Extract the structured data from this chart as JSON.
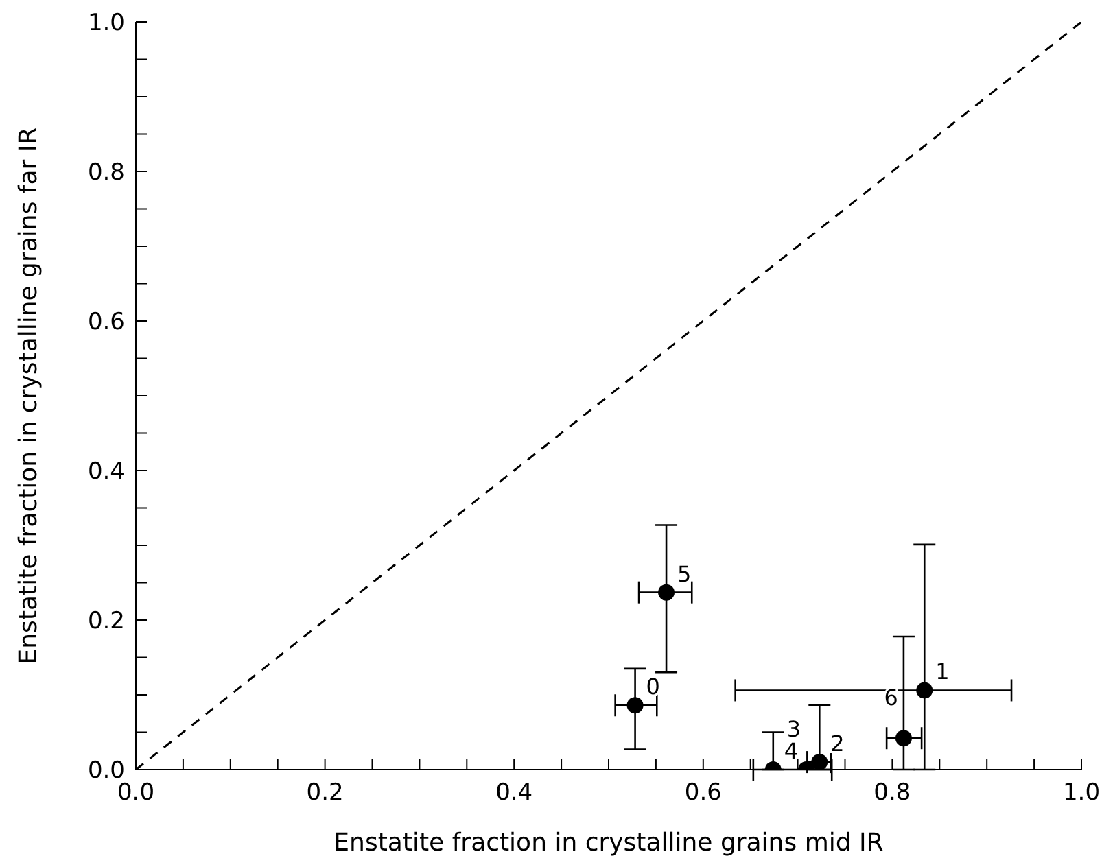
{
  "chart_data": {
    "type": "scatter",
    "xlabel": "Enstatite fraction in crystalline grains mid IR",
    "ylabel": "Enstatite fraction  in crystalline grains far IR",
    "xlim": [
      0,
      1
    ],
    "ylim": [
      0,
      1
    ],
    "xticks": [
      {
        "value": 0,
        "label": "0.0"
      },
      {
        "value": 0.05,
        "label": null
      },
      {
        "value": 0.1,
        "label": null
      },
      {
        "value": 0.15,
        "label": null
      },
      {
        "value": 0.2,
        "label": "0.2"
      },
      {
        "value": 0.25,
        "label": null
      },
      {
        "value": 0.3,
        "label": null
      },
      {
        "value": 0.35,
        "label": null
      },
      {
        "value": 0.4,
        "label": "0.4"
      },
      {
        "value": 0.45,
        "label": null
      },
      {
        "value": 0.5,
        "label": null
      },
      {
        "value": 0.55,
        "label": null
      },
      {
        "value": 0.6,
        "label": "0.6"
      },
      {
        "value": 0.65,
        "label": null
      },
      {
        "value": 0.7,
        "label": null
      },
      {
        "value": 0.75,
        "label": null
      },
      {
        "value": 0.8,
        "label": "0.8"
      },
      {
        "value": 0.85,
        "label": null
      },
      {
        "value": 0.9,
        "label": null
      },
      {
        "value": 0.95,
        "label": null
      },
      {
        "value": 1,
        "label": "1.0"
      }
    ],
    "yticks": [
      {
        "value": 0,
        "label": "0.0"
      },
      {
        "value": 0.05,
        "label": null
      },
      {
        "value": 0.1,
        "label": null
      },
      {
        "value": 0.15,
        "label": null
      },
      {
        "value": 0.2,
        "label": "0.2"
      },
      {
        "value": 0.25,
        "label": null
      },
      {
        "value": 0.3,
        "label": null
      },
      {
        "value": 0.35,
        "label": null
      },
      {
        "value": 0.4,
        "label": "0.4"
      },
      {
        "value": 0.45,
        "label": null
      },
      {
        "value": 0.5,
        "label": null
      },
      {
        "value": 0.55,
        "label": null
      },
      {
        "value": 0.6,
        "label": "0.6"
      },
      {
        "value": 0.65,
        "label": null
      },
      {
        "value": 0.7,
        "label": null
      },
      {
        "value": 0.75,
        "label": null
      },
      {
        "value": 0.8,
        "label": "0.8"
      },
      {
        "value": 0.85,
        "label": null
      },
      {
        "value": 0.9,
        "label": null
      },
      {
        "value": 0.95,
        "label": null
      },
      {
        "value": 1,
        "label": "1.0"
      }
    ],
    "marker": "circle",
    "series": [
      {
        "type": "line",
        "color": "#000000",
        "line_style": "dashed",
        "marker": "none",
        "x": [
          0,
          1
        ],
        "values": [
          0,
          1
        ]
      },
      {
        "color": "#000000",
        "x": [
          0.528,
          0.834,
          0.723,
          0.709,
          0.674,
          0.561,
          0.812
        ],
        "values": [
          0.086,
          0.106,
          0.01,
          0.0,
          0.0,
          0.237,
          0.042
        ],
        "errors": [
          [
            0.027,
            0.135
          ],
          [
            0.0,
            0.301
          ],
          [
            0.0,
            0.086
          ],
          null,
          [
            0.0,
            0.05
          ],
          [
            0.13,
            0.327
          ],
          [
            0.0,
            0.178
          ]
        ],
        "xerrors": [
          [
            0.507,
            0.551
          ],
          [
            0.634,
            0.926
          ],
          [
            0.71,
            0.735
          ],
          null,
          [
            0.653,
            0.736
          ],
          [
            0.532,
            0.588
          ],
          [
            0.794,
            0.831
          ]
        ]
      }
    ],
    "annotations": [
      {
        "text": "0",
        "x": 0.528,
        "y": 0.086
      },
      {
        "text": "1",
        "x": 0.834,
        "y": 0.106
      },
      {
        "text": "2",
        "x": 0.723,
        "y": 0.01
      },
      {
        "text": "3",
        "x": 0.709,
        "y": 0.0
      },
      {
        "text": "4",
        "x": 0.674,
        "y": 0.0
      },
      {
        "text": "5",
        "x": 0.561,
        "y": 0.237
      },
      {
        "text": "6",
        "x": 0.812,
        "y": 0.042
      }
    ]
  }
}
